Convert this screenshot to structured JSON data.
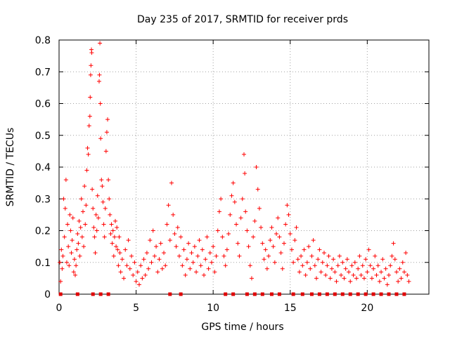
{
  "chart_data": {
    "type": "scatter",
    "title": "Day 235 of 2017, SRMTID for receiver prds",
    "xlabel": "GPS time / hours",
    "ylabel": "SRMTID / TECUs",
    "xlim": [
      0,
      24
    ],
    "ylim": [
      0,
      0.8
    ],
    "xticks": [
      0,
      5,
      10,
      15,
      20
    ],
    "yticks": [
      0,
      0.1,
      0.2,
      0.3,
      0.4,
      0.5,
      0.6,
      0.7,
      0.8
    ],
    "xtick_labels": [
      "0",
      "5",
      "10",
      "15",
      "20"
    ],
    "ytick_labels": [
      "0",
      "0.1",
      "0.2",
      "0.3",
      "0.4",
      "0.5",
      "0.6",
      "0.7",
      "0.8"
    ],
    "grid": true,
    "marker": "plus",
    "series_color": "#ff0000",
    "baseline_marker_color": "#e00000",
    "series": [
      {
        "name": "SRMTID",
        "points": [
          [
            0.05,
            0.1
          ],
          [
            0.1,
            0.04
          ],
          [
            0.15,
            0.14
          ],
          [
            0.2,
            0.08
          ],
          [
            0.25,
            0.12
          ],
          [
            0.3,
            0.3
          ],
          [
            0.35,
            0.18
          ],
          [
            0.4,
            0.27
          ],
          [
            0.45,
            0.36
          ],
          [
            0.5,
            0.1
          ],
          [
            0.55,
            0.22
          ],
          [
            0.6,
            0.15
          ],
          [
            0.65,
            0.09
          ],
          [
            0.7,
            0.25
          ],
          [
            0.75,
            0.2
          ],
          [
            0.8,
            0.13
          ],
          [
            0.85,
            0.17
          ],
          [
            0.9,
            0.24
          ],
          [
            0.95,
            0.07
          ],
          [
            1.0,
            0.11
          ],
          [
            1.05,
            0.06
          ],
          [
            1.1,
            0.09
          ],
          [
            1.15,
            0.14
          ],
          [
            1.2,
            0.19
          ],
          [
            1.25,
            0.16
          ],
          [
            1.3,
            0.23
          ],
          [
            1.35,
            0.12
          ],
          [
            1.4,
            0.21
          ],
          [
            1.45,
            0.3
          ],
          [
            1.5,
            0.18
          ],
          [
            1.55,
            0.26
          ],
          [
            1.6,
            0.15
          ],
          [
            1.65,
            0.34
          ],
          [
            1.7,
            0.22
          ],
          [
            1.75,
            0.28
          ],
          [
            1.8,
            0.39
          ],
          [
            1.85,
            0.46
          ],
          [
            1.9,
            0.44
          ],
          [
            1.95,
            0.53
          ],
          [
            2.0,
            0.56
          ],
          [
            2.02,
            0.62
          ],
          [
            2.05,
            0.69
          ],
          [
            2.07,
            0.72
          ],
          [
            2.1,
            0.77
          ],
          [
            2.12,
            0.76
          ],
          [
            2.15,
            0.33
          ],
          [
            2.2,
            0.27
          ],
          [
            2.25,
            0.21
          ],
          [
            2.3,
            0.18
          ],
          [
            2.35,
            0.13
          ],
          [
            2.4,
            0.25
          ],
          [
            2.45,
            0.2
          ],
          [
            2.5,
            0.31
          ],
          [
            2.55,
            0.24
          ],
          [
            2.6,
            0.67
          ],
          [
            2.62,
            0.69
          ],
          [
            2.65,
            0.79
          ],
          [
            2.68,
            0.6
          ],
          [
            2.7,
            0.49
          ],
          [
            2.75,
            0.36
          ],
          [
            2.8,
            0.34
          ],
          [
            2.85,
            0.29
          ],
          [
            2.9,
            0.22
          ],
          [
            2.95,
            0.18
          ],
          [
            3.0,
            0.27
          ],
          [
            3.05,
            0.45
          ],
          [
            3.1,
            0.51
          ],
          [
            3.15,
            0.55
          ],
          [
            3.2,
            0.36
          ],
          [
            3.25,
            0.3
          ],
          [
            3.3,
            0.25
          ],
          [
            3.35,
            0.19
          ],
          [
            3.4,
            0.22
          ],
          [
            3.45,
            0.16
          ],
          [
            3.5,
            0.2
          ],
          [
            3.55,
            0.12
          ],
          [
            3.6,
            0.18
          ],
          [
            3.65,
            0.23
          ],
          [
            3.7,
            0.15
          ],
          [
            3.75,
            0.21
          ],
          [
            3.8,
            0.14
          ],
          [
            3.85,
            0.09
          ],
          [
            3.9,
            0.18
          ],
          [
            3.95,
            0.13
          ],
          [
            4.0,
            0.07
          ],
          [
            4.1,
            0.11
          ],
          [
            4.2,
            0.05
          ],
          [
            4.3,
            0.14
          ],
          [
            4.4,
            0.09
          ],
          [
            4.5,
            0.17
          ],
          [
            4.6,
            0.08
          ],
          [
            4.7,
            0.12
          ],
          [
            4.8,
            0.06
          ],
          [
            4.9,
            0.1
          ],
          [
            5.0,
            0.04
          ],
          [
            5.1,
            0.07
          ],
          [
            5.2,
            0.03
          ],
          [
            5.3,
            0.09
          ],
          [
            5.4,
            0.05
          ],
          [
            5.5,
            0.11
          ],
          [
            5.6,
            0.06
          ],
          [
            5.7,
            0.13
          ],
          [
            5.8,
            0.08
          ],
          [
            5.9,
            0.17
          ],
          [
            6.0,
            0.1
          ],
          [
            6.1,
            0.2
          ],
          [
            6.2,
            0.12
          ],
          [
            6.3,
            0.15
          ],
          [
            6.4,
            0.07
          ],
          [
            6.5,
            0.11
          ],
          [
            6.6,
            0.16
          ],
          [
            6.7,
            0.08
          ],
          [
            6.8,
            0.13
          ],
          [
            6.9,
            0.09
          ],
          [
            7.0,
            0.22
          ],
          [
            7.1,
            0.28
          ],
          [
            7.2,
            0.17
          ],
          [
            7.3,
            0.35
          ],
          [
            7.4,
            0.25
          ],
          [
            7.5,
            0.19
          ],
          [
            7.6,
            0.15
          ],
          [
            7.7,
            0.21
          ],
          [
            7.8,
            0.12
          ],
          [
            7.9,
            0.18
          ],
          [
            8.0,
            0.09
          ],
          [
            8.1,
            0.14
          ],
          [
            8.2,
            0.06
          ],
          [
            8.3,
            0.11
          ],
          [
            8.4,
            0.16
          ],
          [
            8.5,
            0.08
          ],
          [
            8.6,
            0.13
          ],
          [
            8.7,
            0.1
          ],
          [
            8.8,
            0.15
          ],
          [
            8.9,
            0.07
          ],
          [
            9.0,
            0.12
          ],
          [
            9.1,
            0.17
          ],
          [
            9.2,
            0.09
          ],
          [
            9.3,
            0.14
          ],
          [
            9.4,
            0.06
          ],
          [
            9.5,
            0.11
          ],
          [
            9.6,
            0.18
          ],
          [
            9.7,
            0.08
          ],
          [
            9.8,
            0.13
          ],
          [
            9.9,
            0.1
          ],
          [
            10.0,
            0.15
          ],
          [
            10.1,
            0.07
          ],
          [
            10.2,
            0.12
          ],
          [
            10.3,
            0.2
          ],
          [
            10.4,
            0.26
          ],
          [
            10.5,
            0.3
          ],
          [
            10.6,
            0.18
          ],
          [
            10.7,
            0.12
          ],
          [
            10.8,
            0.09
          ],
          [
            10.9,
            0.14
          ],
          [
            11.0,
            0.19
          ],
          [
            11.1,
            0.25
          ],
          [
            11.2,
            0.31
          ],
          [
            11.3,
            0.35
          ],
          [
            11.4,
            0.29
          ],
          [
            11.5,
            0.22
          ],
          [
            11.6,
            0.16
          ],
          [
            11.7,
            0.12
          ],
          [
            11.8,
            0.24
          ],
          [
            11.9,
            0.3
          ],
          [
            12.0,
            0.44
          ],
          [
            12.05,
            0.38
          ],
          [
            12.1,
            0.26
          ],
          [
            12.2,
            0.2
          ],
          [
            12.3,
            0.15
          ],
          [
            12.4,
            0.09
          ],
          [
            12.5,
            0.05
          ],
          [
            12.6,
            0.18
          ],
          [
            12.7,
            0.23
          ],
          [
            12.8,
            0.4
          ],
          [
            12.9,
            0.33
          ],
          [
            13.0,
            0.27
          ],
          [
            13.1,
            0.21
          ],
          [
            13.2,
            0.16
          ],
          [
            13.3,
            0.11
          ],
          [
            13.4,
            0.14
          ],
          [
            13.5,
            0.08
          ],
          [
            13.6,
            0.12
          ],
          [
            13.7,
            0.17
          ],
          [
            13.8,
            0.21
          ],
          [
            13.9,
            0.15
          ],
          [
            14.0,
            0.1
          ],
          [
            14.1,
            0.19
          ],
          [
            14.2,
            0.24
          ],
          [
            14.3,
            0.18
          ],
          [
            14.4,
            0.13
          ],
          [
            14.5,
            0.08
          ],
          [
            14.6,
            0.16
          ],
          [
            14.7,
            0.22
          ],
          [
            14.8,
            0.28
          ],
          [
            14.9,
            0.25
          ],
          [
            15.0,
            0.19
          ],
          [
            15.1,
            0.14
          ],
          [
            15.2,
            0.1
          ],
          [
            15.3,
            0.17
          ],
          [
            15.4,
            0.21
          ],
          [
            15.5,
            0.11
          ],
          [
            15.6,
            0.07
          ],
          [
            15.7,
            0.12
          ],
          [
            15.8,
            0.09
          ],
          [
            15.9,
            0.14
          ],
          [
            16.0,
            0.06
          ],
          [
            16.1,
            0.1
          ],
          [
            16.2,
            0.15
          ],
          [
            16.3,
            0.08
          ],
          [
            16.4,
            0.12
          ],
          [
            16.5,
            0.17
          ],
          [
            16.6,
            0.09
          ],
          [
            16.7,
            0.05
          ],
          [
            16.8,
            0.11
          ],
          [
            16.9,
            0.14
          ],
          [
            17.0,
            0.07
          ],
          [
            17.1,
            0.1
          ],
          [
            17.2,
            0.13
          ],
          [
            17.3,
            0.06
          ],
          [
            17.4,
            0.09
          ],
          [
            17.5,
            0.12
          ],
          [
            17.6,
            0.05
          ],
          [
            17.7,
            0.08
          ],
          [
            17.8,
            0.11
          ],
          [
            17.9,
            0.07
          ],
          [
            18.0,
            0.04
          ],
          [
            18.1,
            0.09
          ],
          [
            18.2,
            0.12
          ],
          [
            18.3,
            0.06
          ],
          [
            18.4,
            0.1
          ],
          [
            18.5,
            0.05
          ],
          [
            18.6,
            0.08
          ],
          [
            18.7,
            0.11
          ],
          [
            18.8,
            0.07
          ],
          [
            18.9,
            0.04
          ],
          [
            19.0,
            0.09
          ],
          [
            19.1,
            0.06
          ],
          [
            19.2,
            0.1
          ],
          [
            19.3,
            0.05
          ],
          [
            19.4,
            0.08
          ],
          [
            19.5,
            0.12
          ],
          [
            19.6,
            0.06
          ],
          [
            19.7,
            0.09
          ],
          [
            19.8,
            0.05
          ],
          [
            19.9,
            0.11
          ],
          [
            20.0,
            0.07
          ],
          [
            20.1,
            0.14
          ],
          [
            20.2,
            0.09
          ],
          [
            20.3,
            0.05
          ],
          [
            20.4,
            0.08
          ],
          [
            20.5,
            0.12
          ],
          [
            20.6,
            0.06
          ],
          [
            20.7,
            0.09
          ],
          [
            20.8,
            0.04
          ],
          [
            20.9,
            0.07
          ],
          [
            21.0,
            0.11
          ],
          [
            21.1,
            0.05
          ],
          [
            21.2,
            0.08
          ],
          [
            21.3,
            0.03
          ],
          [
            21.4,
            0.06
          ],
          [
            21.5,
            0.09
          ],
          [
            21.6,
            0.12
          ],
          [
            21.7,
            0.16
          ],
          [
            21.8,
            0.11
          ],
          [
            21.9,
            0.07
          ],
          [
            22.0,
            0.04
          ],
          [
            22.1,
            0.08
          ],
          [
            22.2,
            0.05
          ],
          [
            22.3,
            0.1
          ],
          [
            22.4,
            0.07
          ],
          [
            22.5,
            0.13
          ],
          [
            22.6,
            0.06
          ],
          [
            22.7,
            0.04
          ]
        ]
      }
    ],
    "baseline_markers_x": [
      0.1,
      1.2,
      2.2,
      2.7,
      3.2,
      7.2,
      7.9,
      10.8,
      11.3,
      12.2,
      12.7,
      13.2,
      13.8,
      14.3,
      15.2,
      15.8,
      16.4,
      16.9,
      17.4,
      17.9,
      18.4,
      18.9,
      19.4,
      19.9,
      20.4,
      20.9,
      21.4,
      21.9,
      22.4
    ]
  }
}
